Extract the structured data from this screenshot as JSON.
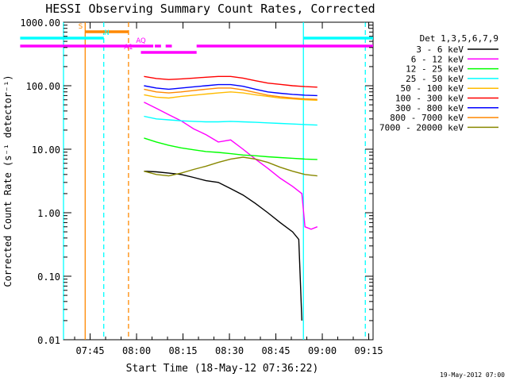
{
  "chart_data": {
    "type": "line",
    "title": "HESSI Observing Summary Count Rates, Corrected",
    "xlabel": "Start Time (18-May-12 07:36:22)",
    "ylabel": "Corrected Count Rate (s⁻¹ detector⁻¹)",
    "footer": "19-May-2012 07:00",
    "x_unit": "minutes after 07:36:22",
    "xlim": [
      0,
      100
    ],
    "ylim": [
      0.01,
      1000
    ],
    "y_scale": "log",
    "x_ticks": [
      {
        "label": "07:45",
        "x": 8.6
      },
      {
        "label": "08:00",
        "x": 23.6
      },
      {
        "label": "08:15",
        "x": 38.6
      },
      {
        "label": "08:30",
        "x": 53.6
      },
      {
        "label": "08:45",
        "x": 68.6
      },
      {
        "label": "09:00",
        "x": 83.6
      },
      {
        "label": "09:15",
        "x": 98.6
      }
    ],
    "y_ticks": [
      {
        "label": "0.01",
        "y": 0.01
      },
      {
        "label": "0.10",
        "y": 0.1
      },
      {
        "label": "1.00",
        "y": 1
      },
      {
        "label": "10.00",
        "y": 10
      },
      {
        "label": "100.00",
        "y": 100
      },
      {
        "label": "1000.00",
        "y": 1000
      }
    ],
    "legend_title": "Det 1,3,5,6,7,9",
    "legend_position": "right",
    "series": [
      {
        "name": "3 - 6 keV",
        "color": "#000000",
        "x": [
          26,
          30,
          34,
          38,
          42,
          46,
          50,
          54,
          58,
          62,
          66,
          70,
          74,
          76,
          77
        ],
        "y": [
          4.5,
          4.4,
          4.2,
          4.0,
          3.6,
          3.2,
          3.0,
          2.4,
          1.9,
          1.4,
          1.0,
          0.7,
          0.5,
          0.38,
          0.02
        ]
      },
      {
        "name": "6 - 12 keV",
        "color": "#ff00ff",
        "x": [
          26,
          30,
          34,
          38,
          42,
          46,
          50,
          54,
          58,
          62,
          66,
          70,
          74,
          77,
          78,
          80,
          82
        ],
        "y": [
          55,
          44,
          35,
          28,
          21,
          17,
          13,
          14,
          10,
          7,
          5,
          3.5,
          2.6,
          2.0,
          0.6,
          0.55,
          0.6
        ]
      },
      {
        "name": "12 - 25 keV",
        "color": "#00ff00",
        "x": [
          26,
          30,
          34,
          38,
          42,
          46,
          50,
          54,
          58,
          62,
          66,
          70,
          74,
          78,
          82
        ],
        "y": [
          15,
          13,
          11.5,
          10.5,
          9.8,
          9.2,
          8.9,
          8.5,
          8.1,
          7.9,
          7.6,
          7.4,
          7.2,
          7.0,
          6.9
        ]
      },
      {
        "name": "25 - 50 keV",
        "color": "#00ffff",
        "x": [
          26,
          30,
          34,
          38,
          42,
          46,
          50,
          54,
          58,
          62,
          66,
          70,
          74,
          78,
          82
        ],
        "y": [
          33,
          30,
          29,
          28,
          27.5,
          27,
          27,
          27.5,
          27,
          26.5,
          26,
          25.5,
          25,
          24.5,
          24
        ]
      },
      {
        "name": "50 - 100 keV",
        "color": "#ffbb00",
        "x": [
          26,
          30,
          34,
          38,
          42,
          46,
          50,
          54,
          58,
          62,
          66,
          70,
          74,
          78,
          82
        ],
        "y": [
          72,
          66,
          64,
          68,
          71,
          74,
          77,
          80,
          77,
          72,
          68,
          64,
          62,
          60,
          59
        ]
      },
      {
        "name": "100 - 300 keV",
        "color": "#ff0000",
        "x": [
          26,
          30,
          34,
          38,
          42,
          46,
          50,
          54,
          58,
          62,
          66,
          70,
          74,
          78,
          82
        ],
        "y": [
          140,
          130,
          125,
          128,
          132,
          136,
          140,
          140,
          132,
          120,
          110,
          105,
          100,
          97,
          95
        ]
      },
      {
        "name": "300 - 800 keV",
        "color": "#0000ff",
        "x": [
          26,
          30,
          34,
          38,
          42,
          46,
          50,
          54,
          58,
          62,
          66,
          70,
          74,
          78,
          82
        ],
        "y": [
          100,
          92,
          88,
          92,
          96,
          100,
          104,
          104,
          98,
          88,
          80,
          76,
          73,
          71,
          70
        ]
      },
      {
        "name": "800 - 7000 keV",
        "color": "#ff8800",
        "x": [
          26,
          30,
          34,
          38,
          42,
          46,
          50,
          54,
          58,
          62,
          66,
          70,
          74,
          78,
          82
        ],
        "y": [
          88,
          80,
          77,
          80,
          84,
          88,
          92,
          92,
          86,
          78,
          71,
          67,
          64,
          62,
          61
        ]
      },
      {
        "name": "7000 - 20000 keV",
        "color": "#888800",
        "x": [
          26,
          30,
          34,
          38,
          42,
          46,
          50,
          54,
          58,
          62,
          66,
          70,
          74,
          78,
          82
        ],
        "y": [
          4.5,
          4.0,
          3.8,
          4.2,
          4.8,
          5.4,
          6.2,
          7.0,
          7.5,
          7.0,
          6.2,
          5.2,
          4.5,
          4.0,
          3.8
        ]
      }
    ],
    "vertical_lines": [
      {
        "x": 0,
        "color": "#00ffff",
        "style": "solid"
      },
      {
        "x": 7,
        "color": "#ff8800",
        "style": "solid"
      },
      {
        "x": 13,
        "color": "#00ffff",
        "style": "dashed"
      },
      {
        "x": 21,
        "color": "#ff8800",
        "style": "dashed"
      },
      {
        "x": 77.5,
        "color": "#00ffff",
        "style": "solid"
      },
      {
        "x": 97.5,
        "color": "#00ffff",
        "style": "dashed"
      }
    ],
    "status_bars": [
      {
        "label": "S",
        "color": "#ff8800",
        "x_start": 7,
        "x_end": 21,
        "level": 3,
        "label_x": 5.5
      },
      {
        "label": "N",
        "color": "#00ffff",
        "x_start": -14,
        "x_end": 13,
        "level": 2,
        "label_x": 14
      },
      {
        "label": "N",
        "color": "#00ffff",
        "x_start": 77.5,
        "x_end": 100,
        "level": 2,
        "label_x": null
      },
      {
        "label": "",
        "color": "#ff00ff",
        "x_start": -14,
        "x_end": 21,
        "level": 1,
        "label_x": null
      },
      {
        "label": "AQ",
        "color": "#ff00ff",
        "x_start": 21,
        "x_end": 29,
        "level": 1,
        "label_x": 25
      },
      {
        "label": "",
        "color": "#ff00ff",
        "x_start": 29.5,
        "x_end": 31.5,
        "level": 1,
        "label_x": null
      },
      {
        "label": "",
        "color": "#ff00ff",
        "x_start": 33,
        "x_end": 35,
        "level": 1,
        "label_x": null
      },
      {
        "label": "",
        "color": "#ff00ff",
        "x_start": 43,
        "x_end": 100,
        "level": 1,
        "label_x": null
      },
      {
        "label": "A1",
        "color": "#ff00ff",
        "x_start": 25,
        "x_end": 43,
        "level": 0,
        "label_x": 21
      }
    ]
  }
}
